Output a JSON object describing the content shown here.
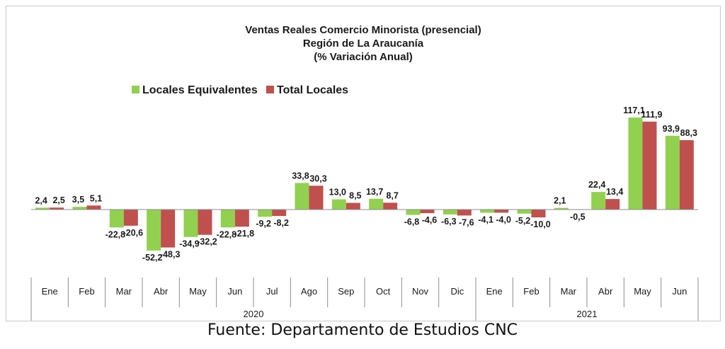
{
  "chart_data": {
    "type": "bar",
    "title_lines": [
      "Ventas Reales Comercio Minorista (presencial)",
      "Región de La Araucanía",
      "(% Variación Anual)"
    ],
    "categories": [
      "Ene",
      "Feb",
      "Mar",
      "Abr",
      "May",
      "Jun",
      "Jul",
      "Ago",
      "Sep",
      "Oct",
      "Nov",
      "Dic",
      "Ene",
      "Feb",
      "Mar",
      "Abr",
      "May",
      "Jun"
    ],
    "groups": [
      {
        "label": "2020",
        "count": 12
      },
      {
        "label": "2021",
        "count": 6
      }
    ],
    "series": [
      {
        "name": "Locales Equivalentes",
        "color": "#92d050",
        "values": [
          2.4,
          3.5,
          -22.8,
          -52.2,
          -34.9,
          -22.8,
          -9.2,
          33.8,
          13.0,
          13.7,
          -6.8,
          -6.3,
          -4.1,
          -5.2,
          2.1,
          22.4,
          117.1,
          93.9
        ],
        "labels": [
          "2,4",
          "3,5",
          "-22,8",
          "-52,2",
          "-34,9",
          "-22,8",
          "-9,2",
          "33,8",
          "13,0",
          "13,7",
          "-6,8",
          "-6,3",
          "-4,1",
          "-5,2",
          "2,1",
          "22,4",
          "117,1",
          "93,9"
        ]
      },
      {
        "name": "Total Locales",
        "color": "#c0504d",
        "values": [
          2.5,
          5.1,
          -20.6,
          -48.3,
          -32.2,
          -21.8,
          -8.2,
          30.3,
          8.5,
          8.7,
          -4.6,
          -7.6,
          -4.0,
          -10.0,
          -0.5,
          13.4,
          111.9,
          88.3
        ],
        "labels": [
          "2,5",
          "5,1",
          "-20,6",
          "-48,3",
          "-32,2",
          "-21,8",
          "-8,2",
          "30,3",
          "8,5",
          "8,7",
          "-4,6",
          "-7,6",
          "-4,0",
          "-10,0",
          "-0,5",
          "13,4",
          "111,9",
          "88,3"
        ]
      }
    ],
    "ylim": [
      -60,
      125
    ],
    "legend_position": "top-left",
    "grid": false
  },
  "source_text": "Fuente: Departamento de Estudios CNC"
}
